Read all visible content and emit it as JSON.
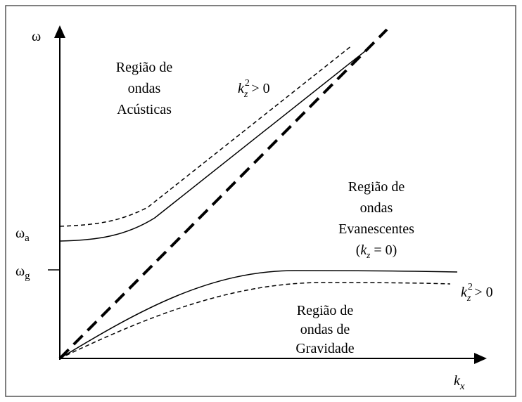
{
  "axes": {
    "y_label": "ω",
    "x_label": {
      "base": "k",
      "sub": "x"
    }
  },
  "levels": [
    {
      "base": "ω",
      "sub": "a"
    },
    {
      "base": "ω",
      "sub": "g"
    }
  ],
  "regions": [
    {
      "lines": [
        "Região de",
        "ondas",
        "Acústicas"
      ]
    },
    {
      "lines": [
        "Região de",
        "ondas",
        "Evanescentes"
      ],
      "condition": {
        "open": "(",
        "base": "k",
        "sub": "z",
        "rest": " = 0)"
      }
    },
    {
      "lines": [
        "Região de",
        "ondas de",
        "Gravidade"
      ]
    }
  ],
  "conditions": [
    {
      "base": "k",
      "sub": "z",
      "sup": "2",
      "rest": " > 0"
    },
    {
      "base": "k",
      "sub": "z",
      "sup": "2",
      "rest": " > 0"
    }
  ]
}
